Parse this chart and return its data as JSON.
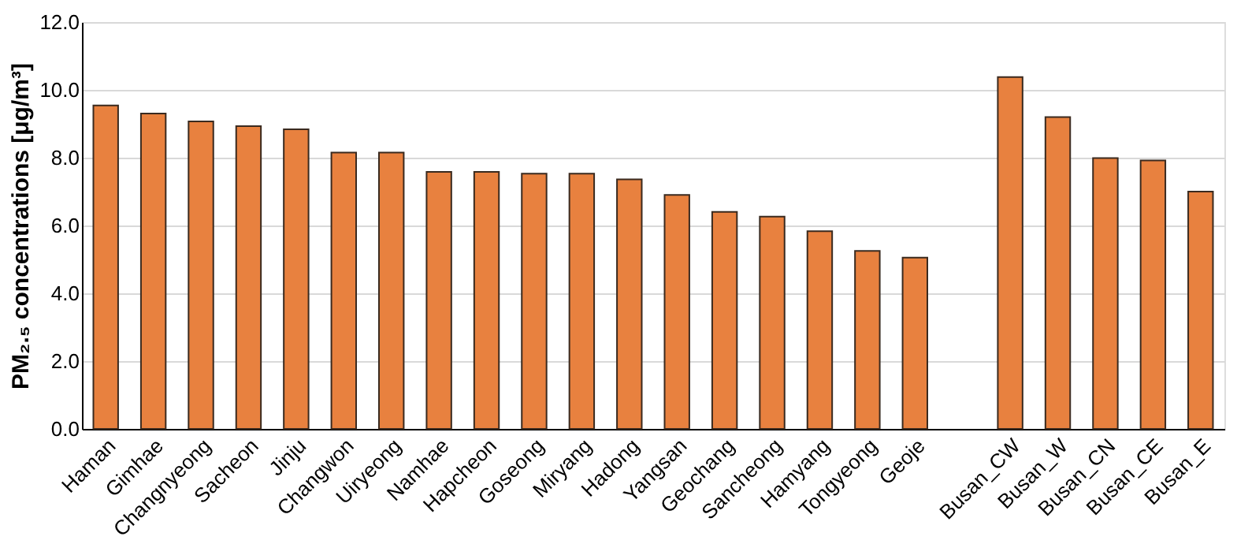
{
  "chart_data": {
    "type": "bar",
    "ylabel": "PM₂.₅ concentrations [μg/m³]",
    "categories": [
      "Haman",
      "Gimhae",
      "Changnyeong",
      "Sacheon",
      "Jinju",
      "Changwon",
      "Uiryeong",
      "Namhae",
      "Hapcheon",
      "Goseong",
      "Miryang",
      "Hadong",
      "Yangsan",
      "Geochang",
      "Sancheong",
      "Hamyang",
      "Tongyeong",
      "Geoje",
      null,
      "Busan_CW",
      "Busan_W",
      "Busan_CN",
      "Busan_CE",
      "Busan_E"
    ],
    "values": [
      9.54,
      9.3,
      9.07,
      8.93,
      8.84,
      8.15,
      8.15,
      7.58,
      7.58,
      7.53,
      7.53,
      7.36,
      6.9,
      6.4,
      6.26,
      5.83,
      5.25,
      5.05,
      null,
      10.38,
      9.2,
      7.99,
      7.92,
      7.0
    ],
    "color": "#e8813f",
    "ylim": [
      0,
      12
    ],
    "yticks": [
      {
        "value": 0,
        "label": "0.0"
      },
      {
        "value": 2,
        "label": "2.0"
      },
      {
        "value": 4,
        "label": "4.0"
      },
      {
        "value": 6,
        "label": "6.0"
      },
      {
        "value": 8,
        "label": "8.0"
      },
      {
        "value": 10,
        "label": "10.0"
      },
      {
        "value": 12,
        "label": "12.0"
      }
    ],
    "grid": "y"
  }
}
